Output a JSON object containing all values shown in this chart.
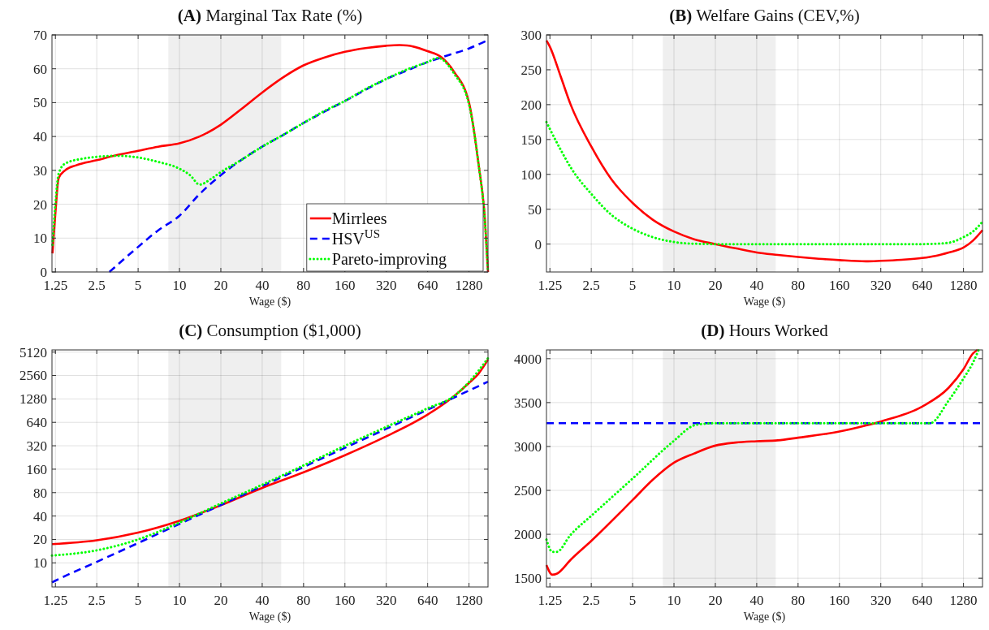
{
  "chart_data": [
    {
      "type": "line",
      "title": "(A) Marginal Tax Rate (%)",
      "xlabel": "Wage ($)",
      "log": "x",
      "grid": true,
      "legend": "bottom right",
      "xlim": [
        1.18,
        1760
      ],
      "xticks": [
        1.25,
        2.5,
        5,
        10,
        20,
        40,
        80,
        160,
        320,
        640,
        1280
      ],
      "ylim": [
        0,
        70
      ],
      "yticks": [
        0,
        10,
        20,
        30,
        40,
        50,
        60,
        70
      ],
      "bands": [
        {
          "axis": "x",
          "from": 8.3,
          "to": 55,
          "color": "#efefef"
        }
      ],
      "series": [
        {
          "name": "Mirrlees",
          "color": "#ff0000",
          "line_style": "solid",
          "x": [
            1.19,
            1.25,
            1.32,
            1.47,
            1.77,
            2.5,
            3.5,
            5,
            7,
            10,
            14,
            20,
            28,
            40,
            57,
            80,
            113,
            160,
            226,
            320,
            400,
            453,
            640,
            800,
            1000,
            1280,
            1500,
            1670,
            1760
          ],
          "values": [
            5.5,
            17.5,
            27.7,
            30,
            31.5,
            33,
            34.5,
            35.8,
            37,
            38,
            40,
            43.5,
            48,
            53,
            57.5,
            61,
            63.3,
            65,
            66.1,
            66.8,
            67,
            66.9,
            65.2,
            63.5,
            59,
            50,
            32,
            15.7,
            0
          ]
        },
        {
          "name": "HSV$^{US}$",
          "color": "#0000ff",
          "line_style": "dashed",
          "x": [
            3.09,
            5,
            7,
            10,
            14,
            20,
            28,
            40,
            57,
            80,
            113,
            160,
            226,
            320,
            453,
            640,
            905,
            1280,
            1760
          ],
          "values": [
            0,
            7.4,
            12.3,
            16.6,
            23,
            28.6,
            33,
            37,
            40.5,
            44,
            47.3,
            50.5,
            53.8,
            57,
            59.5,
            62,
            64,
            66,
            68.5
          ]
        },
        {
          "name": "Pareto-improving",
          "color": "#00ff00",
          "line_style": "dotted",
          "x": [
            1.19,
            1.25,
            1.32,
            1.47,
            2,
            2.5,
            3.5,
            5,
            7,
            10,
            12,
            14,
            17,
            20,
            28,
            40,
            57,
            80,
            113,
            160,
            226,
            320,
            453,
            640,
            760,
            1000,
            1280,
            1500,
            1670,
            1760
          ],
          "values": [
            8,
            20,
            29,
            32,
            33.5,
            34,
            34.3,
            33.8,
            32.5,
            30.5,
            28.5,
            25.8,
            27.5,
            29.5,
            33,
            37,
            40.5,
            44,
            47.5,
            50.5,
            54,
            57,
            59.8,
            62,
            63.2,
            58.5,
            49.5,
            32,
            15,
            0
          ]
        }
      ]
    },
    {
      "type": "line",
      "title": "(B) Welfare Gains (CEV,%)",
      "xlabel": "Wage ($)",
      "log": "x",
      "grid": true,
      "xlim": [
        1.18,
        1760
      ],
      "xticks": [
        1.25,
        2.5,
        5,
        10,
        20,
        40,
        80,
        160,
        320,
        640,
        1280
      ],
      "ylim": [
        -40,
        300
      ],
      "yticks": [
        0,
        50,
        100,
        150,
        200,
        250,
        300
      ],
      "bands": [
        {
          "axis": "x",
          "from": 8.3,
          "to": 55,
          "color": "#efefef"
        }
      ],
      "series": [
        {
          "color": "#ff0000",
          "line_style": "solid",
          "x": [
            1.18,
            1.25,
            1.5,
            1.77,
            2.5,
            3.5,
            5,
            7,
            10,
            14,
            20,
            28,
            40,
            57,
            80,
            113,
            160,
            250,
            320,
            453,
            640,
            800,
            1000,
            1280,
            1500,
            1760
          ],
          "values": [
            292,
            283,
            240,
            200,
            140,
            93,
            59,
            35,
            18,
            7,
            0,
            -6,
            -12,
            -15.5,
            -18.5,
            -21,
            -23,
            -24.7,
            -24,
            -22.5,
            -20,
            -17,
            -12,
            -5,
            5,
            20
          ]
        },
        {
          "color": "#00ff00",
          "line_style": "dotted",
          "x": [
            1.18,
            1.25,
            1.5,
            1.77,
            2.5,
            3.5,
            5,
            7,
            10,
            14,
            20,
            40,
            80,
            160,
            320,
            640,
            900,
            1100,
            1280,
            1500,
            1760
          ],
          "values": [
            175,
            165,
            135,
            110,
            72,
            42,
            22,
            10,
            3,
            0.5,
            0,
            0,
            0,
            0,
            0,
            0,
            1,
            4,
            10,
            18,
            32
          ]
        }
      ]
    },
    {
      "type": "line",
      "title": "(C) Consumption ($1,000)",
      "xlabel": "Wage ($)",
      "log": "xy",
      "grid": true,
      "xlim": [
        1.18,
        1760
      ],
      "xticks": [
        1.25,
        2.5,
        5,
        10,
        20,
        40,
        80,
        160,
        320,
        640,
        1280
      ],
      "ylim": [
        4.9,
        5460
      ],
      "yticks": [
        10,
        20,
        40,
        80,
        160,
        320,
        640,
        1280,
        2560,
        5120
      ],
      "bands": [
        {
          "axis": "x",
          "from": 8.3,
          "to": 55,
          "color": "#efefef"
        }
      ],
      "series": [
        {
          "color": "#ff0000",
          "line_style": "solid",
          "x": [
            1.18,
            2.5,
            5,
            10,
            20,
            40,
            80,
            160,
            320,
            640,
            1000,
            1280,
            1500,
            1760
          ],
          "values": [
            17.4,
            19.5,
            24.5,
            34.8,
            55,
            92,
            146,
            242,
            424,
            806,
            1400,
            2050,
            2700,
            4080
          ]
        },
        {
          "color": "#0000ff",
          "line_style": "dashed",
          "x": [
            1.18,
            1.25,
            2.5,
            5,
            10,
            20,
            40,
            80,
            160,
            320,
            640,
            1280,
            1760
          ],
          "values": [
            5.6,
            5.9,
            10.3,
            18,
            31.7,
            55.5,
            97,
            171,
            301,
            529,
            930,
            1640,
            2130
          ]
        },
        {
          "color": "#00ff00",
          "line_style": "dotted",
          "x": [
            1.18,
            2.5,
            5,
            10,
            20,
            40,
            80,
            160,
            320,
            640,
            1000,
            1280,
            1760
          ],
          "values": [
            12.4,
            14.5,
            20,
            33,
            58,
            101,
            179,
            320,
            560,
            970,
            1400,
            2110,
            4270
          ]
        }
      ]
    },
    {
      "type": "line",
      "title": "(D) Hours Worked",
      "xlabel": "Wage ($)",
      "log": "x",
      "grid": true,
      "xlim": [
        1.18,
        1760
      ],
      "xticks": [
        1.25,
        2.5,
        5,
        10,
        20,
        40,
        80,
        160,
        320,
        640,
        1280
      ],
      "ylim": [
        1400,
        4100
      ],
      "yticks": [
        1500,
        2000,
        2500,
        3000,
        3500,
        4000
      ],
      "bands": [
        {
          "axis": "x",
          "from": 8.3,
          "to": 55,
          "color": "#efefef"
        }
      ],
      "series": [
        {
          "color": "#ff0000",
          "line_style": "solid",
          "x": [
            1.18,
            1.3,
            1.4,
            1.77,
            2.5,
            5,
            7,
            10,
            14,
            20,
            28,
            40,
            57,
            80,
            160,
            250,
            320,
            640,
            1000,
            1280,
            1500,
            1620
          ],
          "values": [
            1650,
            1540,
            1550,
            1710,
            1925,
            2390,
            2620,
            2815,
            2920,
            3010,
            3045,
            3060,
            3070,
            3100,
            3170,
            3240,
            3285,
            3455,
            3670,
            3880,
            4060,
            4100
          ]
        },
        {
          "color": "#0000ff",
          "line_style": "dashed",
          "x": [
            1.18,
            1760
          ],
          "values": [
            3265,
            3265
          ]
        },
        {
          "color": "#00ff00",
          "line_style": "dotted",
          "x": [
            1.18,
            1.3,
            1.4,
            1.77,
            2.5,
            5,
            10,
            14,
            17,
            20,
            40,
            80,
            160,
            320,
            640,
            730,
            1000,
            1280,
            1500,
            1650
          ],
          "values": [
            1940,
            1800,
            1800,
            1995,
            2210,
            2635,
            3065,
            3240,
            3260,
            3265,
            3265,
            3265,
            3265,
            3265,
            3265,
            3265,
            3525,
            3775,
            3955,
            4100
          ]
        }
      ]
    }
  ]
}
